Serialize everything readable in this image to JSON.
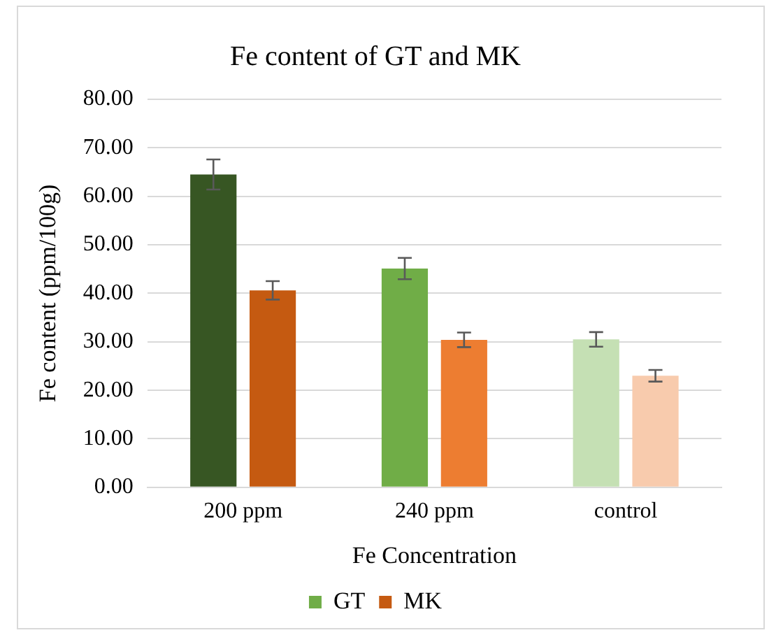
{
  "chart_data": {
    "type": "bar",
    "title": "Fe content of GT and MK",
    "xlabel": "Fe Concentration",
    "ylabel": "Fe content (ppm/100g)",
    "categories": [
      "200 ppm",
      "240 ppm",
      "control"
    ],
    "series": [
      {
        "name": "GT",
        "color": "#70ad47",
        "colors": [
          "#375623",
          "#70ad47",
          "#c5e0b4"
        ],
        "values": [
          64.5,
          45.1,
          30.5
        ],
        "errors": [
          3.1,
          2.2,
          1.5
        ]
      },
      {
        "name": "MK",
        "color": "#c55a11",
        "colors": [
          "#c55a11",
          "#ed7d31",
          "#f8cbad"
        ],
        "values": [
          40.6,
          30.4,
          23.0
        ],
        "errors": [
          1.9,
          1.5,
          1.2
        ]
      }
    ],
    "ylim": [
      0,
      80
    ],
    "yticks": [
      {
        "value": 0,
        "label": "0.00"
      },
      {
        "value": 10,
        "label": "10.00"
      },
      {
        "value": 20,
        "label": "20.00"
      },
      {
        "value": 30,
        "label": "30.00"
      },
      {
        "value": 40,
        "label": "40.00"
      },
      {
        "value": 50,
        "label": "50.00"
      },
      {
        "value": 60,
        "label": "60.00"
      },
      {
        "value": 70,
        "label": "70.00"
      },
      {
        "value": 80,
        "label": "80.00"
      }
    ],
    "grid": "y",
    "legend": "bottom"
  }
}
